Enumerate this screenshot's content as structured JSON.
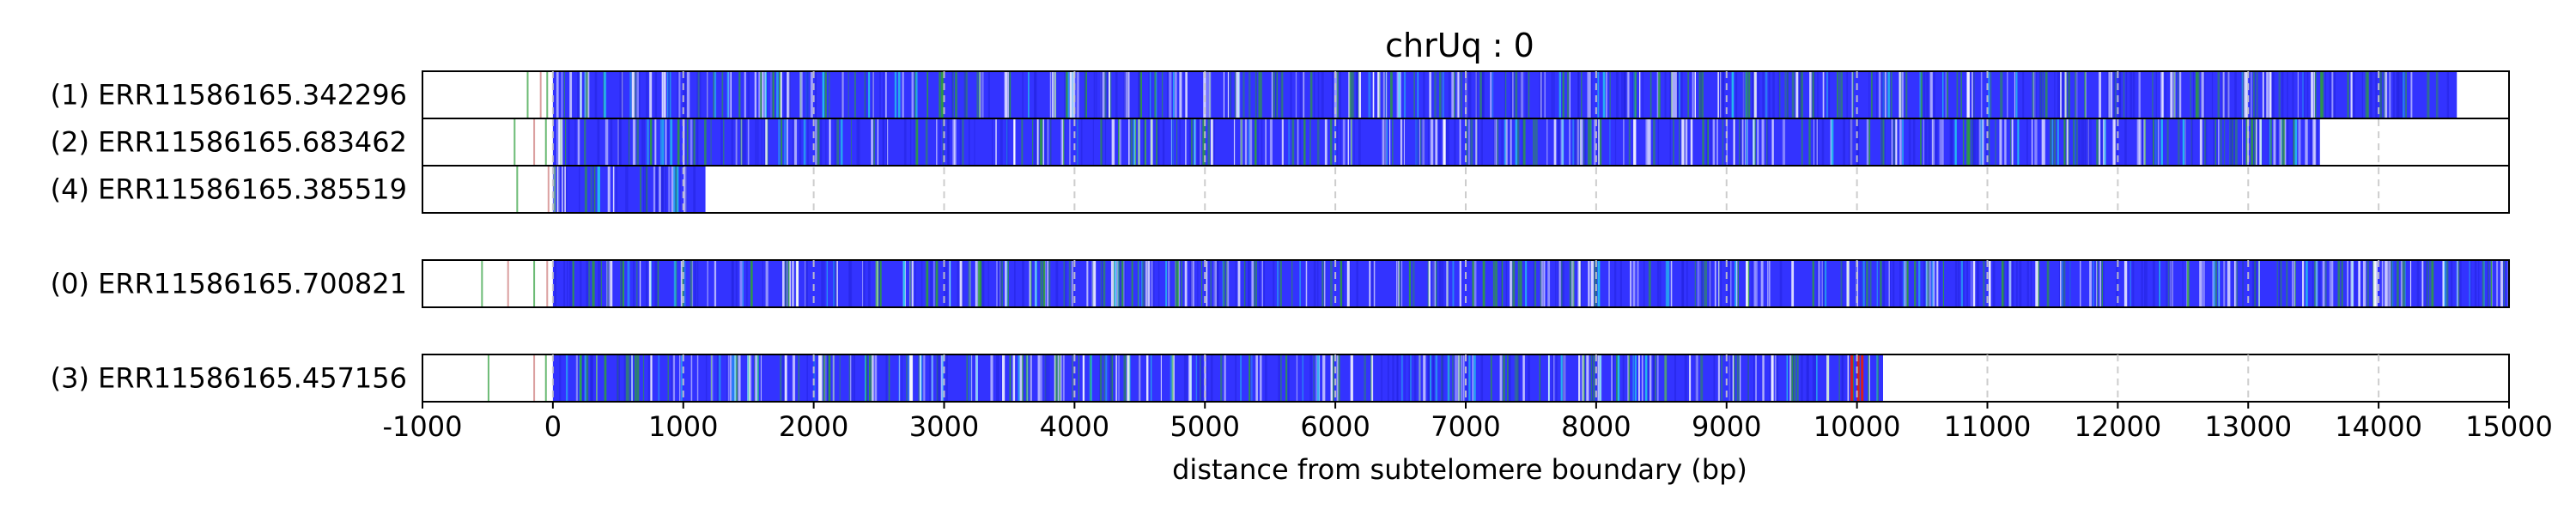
{
  "chart_data": {
    "type": "heatmap",
    "title": "chrUq : 0",
    "xlabel": "distance from subtelomere boundary (bp)",
    "xlim": [
      -1000,
      15000
    ],
    "xticks": [
      "-1000",
      "0",
      "1000",
      "2000",
      "3000",
      "4000",
      "5000",
      "6000",
      "7000",
      "8000",
      "9000",
      "10000",
      "11000",
      "12000",
      "13000",
      "14000",
      "15000"
    ],
    "grid": "vertical dashed gridlines at each x tick",
    "colors": {
      "base": "#3333ff",
      "green": "#2e9e3a",
      "cyan": "#22c8ee",
      "white": "#ffffff",
      "red": "#d42020",
      "gray": "#909090",
      "grid": "#c8c8c8"
    },
    "groups": [
      {
        "reads": [
          {
            "label": "(1) ERR11586165.342296",
            "start": 0,
            "end": 14600,
            "pre_marks": [
              -200,
              -100,
              -50
            ]
          },
          {
            "label": "(2) ERR11586165.683462",
            "start": 0,
            "end": 13550,
            "pre_marks": [
              -300,
              -150,
              -60
            ]
          },
          {
            "label": "(4) ERR11586165.385519",
            "start": 0,
            "end": 1170,
            "pre_marks": [
              -280,
              -40
            ]
          }
        ]
      },
      {
        "reads": [
          {
            "label": "(0) ERR11586165.700821",
            "start": 0,
            "end": 15000,
            "pre_marks": [
              -550,
              -350,
              -150,
              -50
            ]
          }
        ]
      },
      {
        "reads": [
          {
            "label": "(3) ERR11586165.457156",
            "start": 0,
            "end": 10200,
            "pre_marks": [
              -500,
              -150,
              -60
            ],
            "red_marks": [
              9950,
              10000,
              10030
            ]
          }
        ]
      }
    ]
  }
}
